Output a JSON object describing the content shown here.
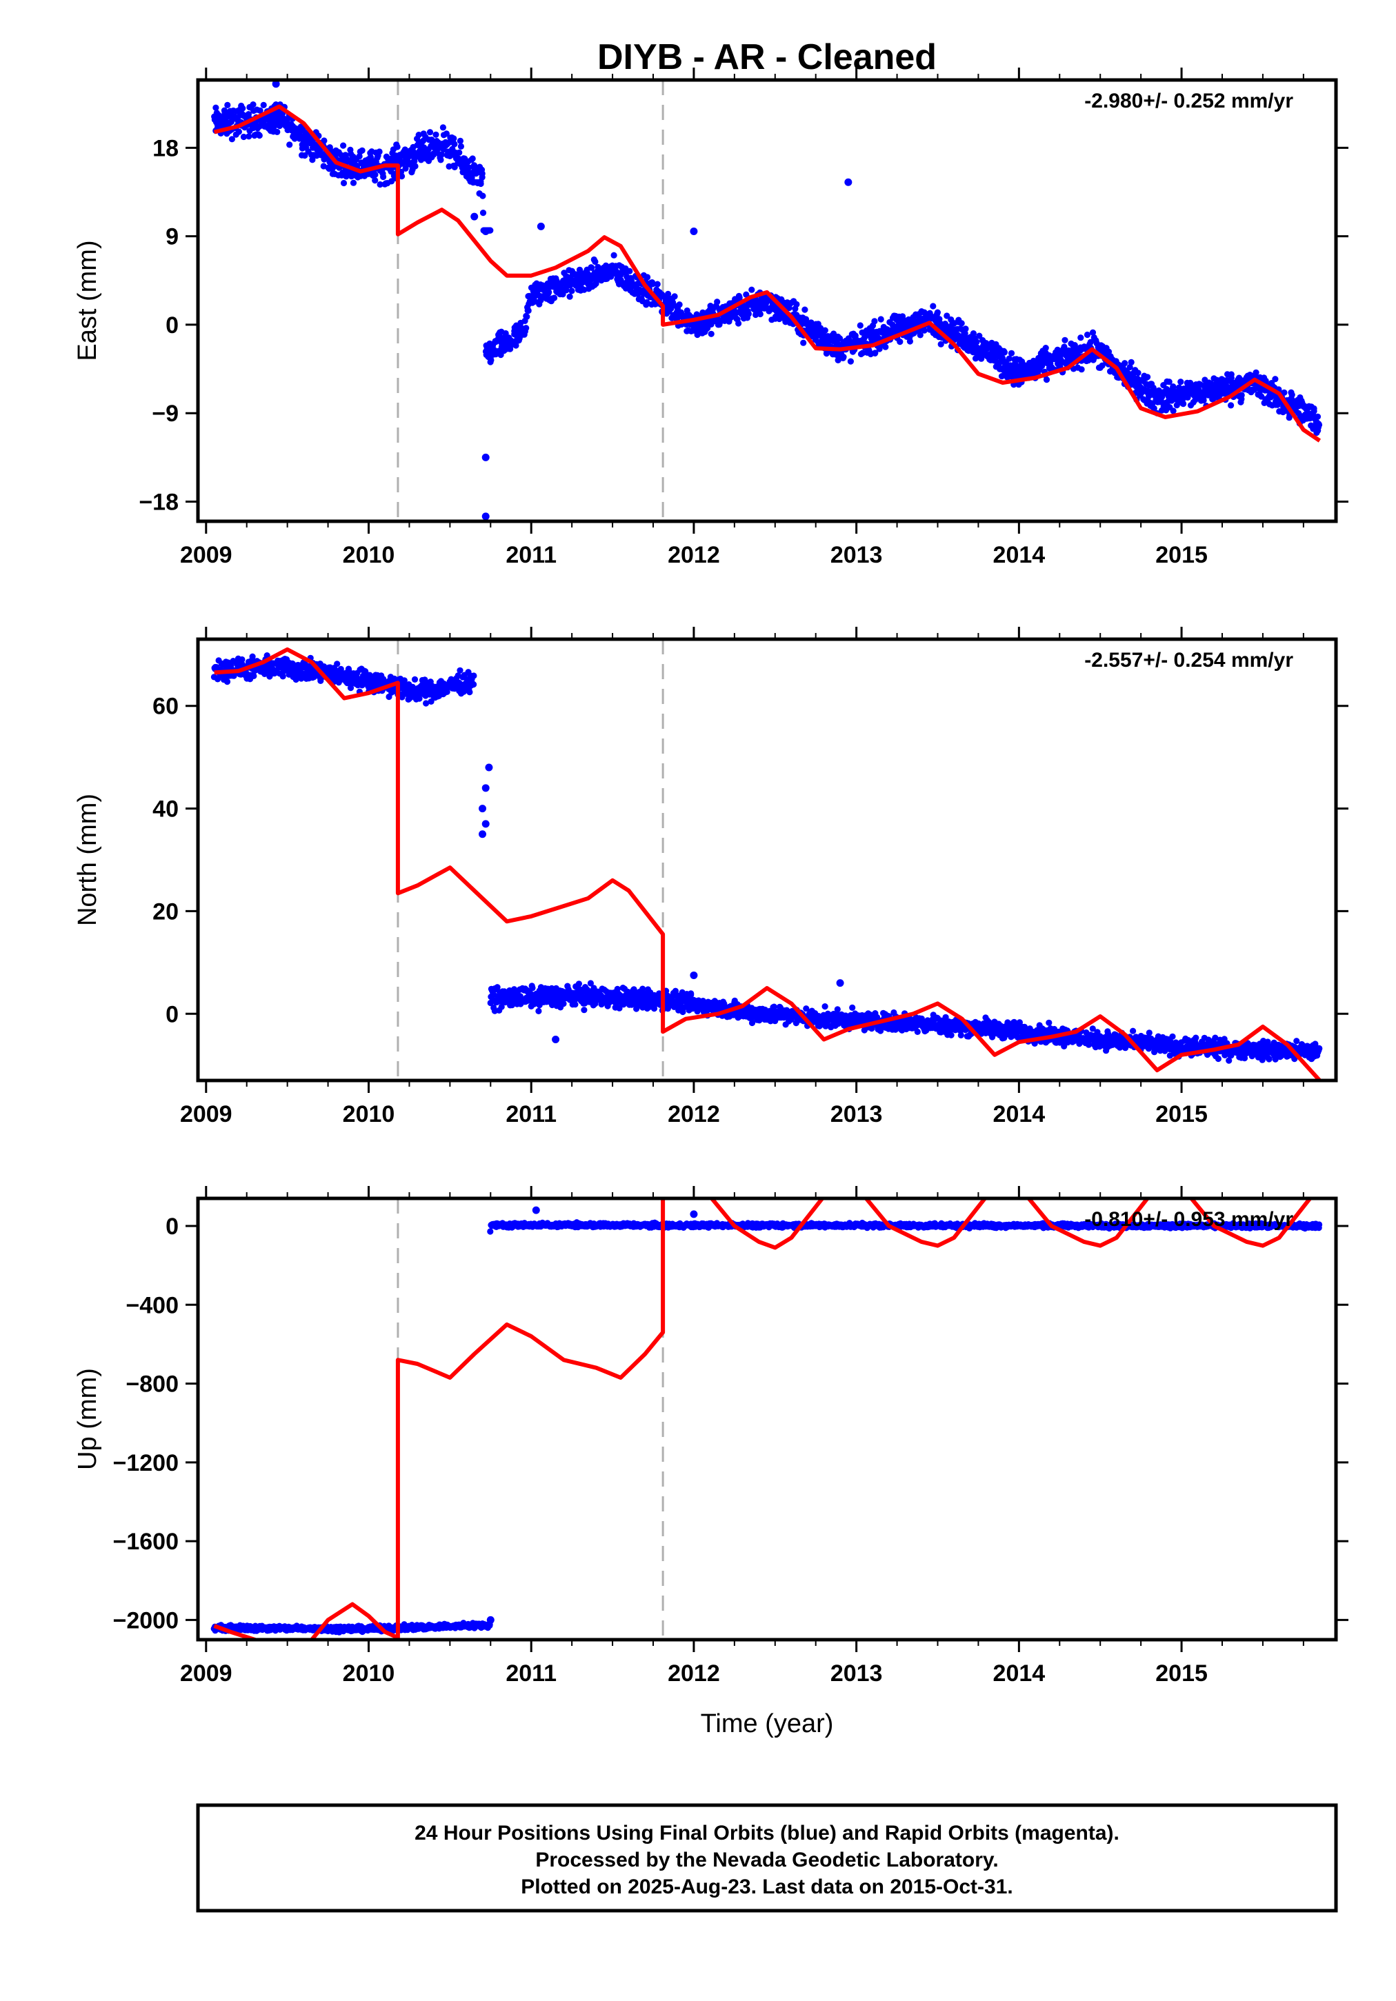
{
  "chart_data": {
    "type": "scatter",
    "title": "DIYB  - AR - Cleaned",
    "xlabel": "Time (year)",
    "x_ticks": [
      2009,
      2010,
      2011,
      2012,
      2013,
      2014,
      2015
    ],
    "xlim": [
      2008.95,
      2015.95
    ],
    "offset_lines_x": [
      2010.18,
      2011.81
    ],
    "colors": {
      "points": "#0000ff",
      "model": "#ff0000",
      "offset_line": "#b0b0b0",
      "axes": "#000000"
    },
    "panels": [
      {
        "name": "East",
        "ylabel": "East (mm)",
        "rate": "-2.980+/- 0.252 mm/yr",
        "ylim": [
          -20.0,
          24.9
        ],
        "yticks": [
          18,
          9,
          0,
          -9,
          -18
        ],
        "ytick_labels": [
          "18",
          "9",
          "0",
          "−9",
          "−18"
        ],
        "segments": [
          {
            "x0": 2009.05,
            "x1": 2010.75,
            "lo": 12,
            "hi": 20,
            "fuzz": 1.2
          },
          {
            "x0": 2010.72,
            "x1": 2010.95,
            "lo": -7,
            "hi": 1,
            "fuzz": 1.0
          },
          {
            "x0": 2010.9,
            "x1": 2011.85,
            "lo": 1,
            "hi": 8,
            "fuzz": 1.0
          },
          {
            "x0": 2011.85,
            "x1": 2013.85,
            "lo": -5,
            "hi": 3.5,
            "fuzz": 1.1
          },
          {
            "x0": 2013.85,
            "x1": 2015.85,
            "lo": -11,
            "hi": -2,
            "fuzz": 1.1
          }
        ],
        "points_trend": [
          [
            2009.05,
            20.5
          ],
          [
            2009.45,
            21.0
          ],
          [
            2009.8,
            16.5
          ],
          [
            2010.1,
            16.0
          ],
          [
            2010.45,
            18.5
          ],
          [
            2010.7,
            14.5
          ],
          [
            2010.72,
            -3.0
          ],
          [
            2010.95,
            -1.0
          ],
          [
            2011.0,
            3.0
          ],
          [
            2011.5,
            5.5
          ],
          [
            2011.85,
            2.0
          ],
          [
            2012.0,
            0.0
          ],
          [
            2012.45,
            2.5
          ],
          [
            2012.9,
            -2.5
          ],
          [
            2013.45,
            0.5
          ],
          [
            2013.85,
            -3.0
          ],
          [
            2014.0,
            -5.0
          ],
          [
            2014.45,
            -2.5
          ],
          [
            2014.85,
            -7.5
          ],
          [
            2015.45,
            -6.0
          ],
          [
            2015.85,
            -10.0
          ]
        ],
        "outliers": [
          [
            2009.43,
            24.5
          ],
          [
            2010.65,
            11.0
          ],
          [
            2010.72,
            9.5
          ],
          [
            2010.72,
            -13.5
          ],
          [
            2010.72,
            -19.5
          ],
          [
            2011.06,
            10.0
          ],
          [
            2012.0,
            9.5
          ],
          [
            2012.95,
            14.5
          ]
        ],
        "model": [
          [
            2009.05,
            19.6
          ],
          [
            2009.2,
            20.2
          ],
          [
            2009.45,
            22.2
          ],
          [
            2009.6,
            20.5
          ],
          [
            2009.8,
            16.5
          ],
          [
            2009.95,
            15.6
          ],
          [
            2010.1,
            16.2
          ],
          [
            2010.18,
            16.2
          ],
          [
            2010.18,
            9.2
          ],
          [
            2010.3,
            10.4
          ],
          [
            2010.45,
            11.7
          ],
          [
            2010.55,
            10.6
          ],
          [
            2010.75,
            6.5
          ],
          [
            2010.85,
            5.0
          ],
          [
            2011.0,
            5.0
          ],
          [
            2011.15,
            5.8
          ],
          [
            2011.35,
            7.5
          ],
          [
            2011.45,
            8.9
          ],
          [
            2011.55,
            8.0
          ],
          [
            2011.7,
            4.0
          ],
          [
            2011.81,
            1.9
          ],
          [
            2011.81,
            0.0
          ],
          [
            2012.0,
            0.5
          ],
          [
            2012.15,
            1.0
          ],
          [
            2012.35,
            2.8
          ],
          [
            2012.45,
            3.3
          ],
          [
            2012.6,
            0.8
          ],
          [
            2012.75,
            -2.4
          ],
          [
            2012.9,
            -2.5
          ],
          [
            2013.1,
            -2.1
          ],
          [
            2013.3,
            -0.8
          ],
          [
            2013.45,
            0.2
          ],
          [
            2013.6,
            -2.0
          ],
          [
            2013.75,
            -5.0
          ],
          [
            2013.9,
            -5.9
          ],
          [
            2014.1,
            -5.4
          ],
          [
            2014.3,
            -4.4
          ],
          [
            2014.45,
            -2.5
          ],
          [
            2014.6,
            -4.4
          ],
          [
            2014.75,
            -8.5
          ],
          [
            2014.9,
            -9.4
          ],
          [
            2015.1,
            -8.8
          ],
          [
            2015.3,
            -7.3
          ],
          [
            2015.45,
            -5.6
          ],
          [
            2015.6,
            -7.0
          ],
          [
            2015.75,
            -10.7
          ],
          [
            2015.85,
            -11.8
          ]
        ]
      },
      {
        "name": "North",
        "ylabel": "North (mm)",
        "rate": "-2.557+/- 0.254 mm/yr",
        "ylim": [
          -13.0,
          73.0
        ],
        "yticks": [
          60,
          40,
          20,
          0
        ],
        "ytick_labels": [
          "60",
          "40",
          "20",
          "0"
        ],
        "segments": [
          {
            "x0": 2009.05,
            "x1": 2010.65,
            "lo": 62,
            "hi": 69,
            "fuzz": 1.5
          },
          {
            "x0": 2010.75,
            "x1": 2011.85,
            "lo": 0,
            "hi": 6,
            "fuzz": 1.5
          },
          {
            "x0": 2011.85,
            "x1": 2013.85,
            "lo": -6,
            "hi": 3,
            "fuzz": 1.3
          },
          {
            "x0": 2013.85,
            "x1": 2015.85,
            "lo": -10,
            "hi": -2,
            "fuzz": 1.3
          }
        ],
        "points_trend": [
          [
            2009.05,
            67.0
          ],
          [
            2009.5,
            67.5
          ],
          [
            2010.0,
            65.0
          ],
          [
            2010.3,
            62.5
          ],
          [
            2010.65,
            65.0
          ],
          [
            2010.75,
            3.0
          ],
          [
            2011.3,
            3.5
          ],
          [
            2011.85,
            2.5
          ],
          [
            2012.3,
            0.5
          ],
          [
            2012.8,
            -1.0
          ],
          [
            2013.5,
            -2.0
          ],
          [
            2013.85,
            -3.0
          ],
          [
            2014.5,
            -5.0
          ],
          [
            2015.0,
            -6.5
          ],
          [
            2015.85,
            -7.5
          ]
        ],
        "outliers": [
          [
            2010.7,
            35.0
          ],
          [
            2010.7,
            40.0
          ],
          [
            2010.72,
            44.0
          ],
          [
            2010.74,
            48.0
          ],
          [
            2010.72,
            37.0
          ],
          [
            2011.15,
            -5.0
          ],
          [
            2012.0,
            7.5
          ],
          [
            2012.9,
            6.0
          ]
        ],
        "model": [
          [
            2009.05,
            66.5
          ],
          [
            2009.2,
            66.8
          ],
          [
            2009.35,
            68.5
          ],
          [
            2009.5,
            71.0
          ],
          [
            2009.65,
            68.5
          ],
          [
            2009.85,
            61.5
          ],
          [
            2010.0,
            62.5
          ],
          [
            2010.18,
            64.5
          ],
          [
            2010.18,
            23.5
          ],
          [
            2010.3,
            25.0
          ],
          [
            2010.5,
            28.5
          ],
          [
            2010.65,
            24.0
          ],
          [
            2010.85,
            18.0
          ],
          [
            2011.0,
            19.0
          ],
          [
            2011.2,
            21.0
          ],
          [
            2011.35,
            22.5
          ],
          [
            2011.5,
            26.0
          ],
          [
            2011.6,
            24.0
          ],
          [
            2011.81,
            15.5
          ],
          [
            2011.81,
            -3.5
          ],
          [
            2011.95,
            -1.0
          ],
          [
            2012.15,
            0.0
          ],
          [
            2012.3,
            1.5
          ],
          [
            2012.45,
            5.0
          ],
          [
            2012.6,
            2.0
          ],
          [
            2012.8,
            -5.0
          ],
          [
            2012.95,
            -3.0
          ],
          [
            2013.15,
            -1.5
          ],
          [
            2013.35,
            0.0
          ],
          [
            2013.5,
            2.0
          ],
          [
            2013.65,
            -1.0
          ],
          [
            2013.85,
            -8.0
          ],
          [
            2014.0,
            -5.5
          ],
          [
            2014.2,
            -4.5
          ],
          [
            2014.35,
            -3.5
          ],
          [
            2014.5,
            -0.5
          ],
          [
            2014.65,
            -4.0
          ],
          [
            2014.85,
            -11.0
          ],
          [
            2015.0,
            -8.0
          ],
          [
            2015.2,
            -7.0
          ],
          [
            2015.35,
            -6.0
          ],
          [
            2015.5,
            -2.5
          ],
          [
            2015.65,
            -6.0
          ],
          [
            2015.85,
            -13.0
          ]
        ]
      },
      {
        "name": "Up",
        "ylabel": "Up (mm)",
        "rate": "-0.810+/- 0.953 mm/yr",
        "ylim": [
          -2100.0,
          140.0
        ],
        "yticks": [
          0,
          -400,
          -800,
          -1200,
          -1600,
          -2000
        ],
        "ytick_labels": [
          "0",
          "−400",
          "−800",
          "−1200",
          "−1600",
          "−2000"
        ],
        "segments": [
          {
            "x0": 2009.05,
            "x1": 2010.75,
            "lo": -2050,
            "hi": -2025,
            "fuzz": 10
          },
          {
            "x0": 2010.75,
            "x1": 2015.85,
            "lo": -12,
            "hi": 12,
            "fuzz": 8
          }
        ],
        "points_trend": [
          [
            2009.05,
            -2040
          ],
          [
            2010.0,
            -2045
          ],
          [
            2010.75,
            -2025
          ],
          [
            2010.75,
            5
          ],
          [
            2015.85,
            0
          ]
        ],
        "outliers": [
          [
            2010.75,
            -2000
          ],
          [
            2011.03,
            80
          ],
          [
            2012.0,
            60
          ]
        ],
        "model": [
          [
            2009.05,
            -2030
          ],
          [
            2009.15,
            -2060
          ],
          [
            2009.3,
            -2100
          ],
          [
            2009.35,
            -2150
          ],
          [
            2009.6,
            -2150
          ],
          [
            2009.65,
            -2100
          ],
          [
            2009.75,
            -2000
          ],
          [
            2009.9,
            -1920
          ],
          [
            2010.0,
            -1980
          ],
          [
            2010.1,
            -2060
          ],
          [
            2010.18,
            -2090
          ],
          [
            2010.18,
            -680
          ],
          [
            2010.3,
            -700
          ],
          [
            2010.5,
            -770
          ],
          [
            2010.65,
            -650
          ],
          [
            2010.85,
            -500
          ],
          [
            2011.0,
            -560
          ],
          [
            2011.2,
            -680
          ],
          [
            2011.4,
            -720
          ],
          [
            2011.55,
            -770
          ],
          [
            2011.7,
            -650
          ],
          [
            2011.81,
            -540
          ],
          [
            2011.81,
            -400
          ],
          [
            2011.81,
            300
          ],
          [
            2012.0,
            280
          ],
          [
            2012.1,
            150
          ],
          [
            2012.25,
            0
          ],
          [
            2012.4,
            -80
          ],
          [
            2012.5,
            -110
          ],
          [
            2012.6,
            -60
          ],
          [
            2012.8,
            150
          ],
          [
            2012.9,
            300
          ],
          [
            2012.95,
            300
          ],
          [
            2013.05,
            150
          ],
          [
            2013.2,
            0
          ],
          [
            2013.4,
            -80
          ],
          [
            2013.5,
            -100
          ],
          [
            2013.6,
            -60
          ],
          [
            2013.8,
            150
          ],
          [
            2013.9,
            300
          ],
          [
            2013.95,
            300
          ],
          [
            2014.05,
            150
          ],
          [
            2014.2,
            0
          ],
          [
            2014.4,
            -80
          ],
          [
            2014.5,
            -100
          ],
          [
            2014.6,
            -60
          ],
          [
            2014.8,
            150
          ],
          [
            2014.9,
            300
          ],
          [
            2014.95,
            300
          ],
          [
            2015.05,
            150
          ],
          [
            2015.2,
            0
          ],
          [
            2015.4,
            -80
          ],
          [
            2015.5,
            -100
          ],
          [
            2015.6,
            -60
          ],
          [
            2015.8,
            150
          ],
          [
            2015.85,
            300
          ]
        ]
      }
    ]
  },
  "footer": {
    "line1": "24 Hour Positions Using Final Orbits (blue) and Rapid Orbits (magenta).",
    "line2": "Processed by the Nevada Geodetic Laboratory.",
    "line3": "Plotted on 2025-Aug-23. Last data on 2015-Oct-31."
  }
}
